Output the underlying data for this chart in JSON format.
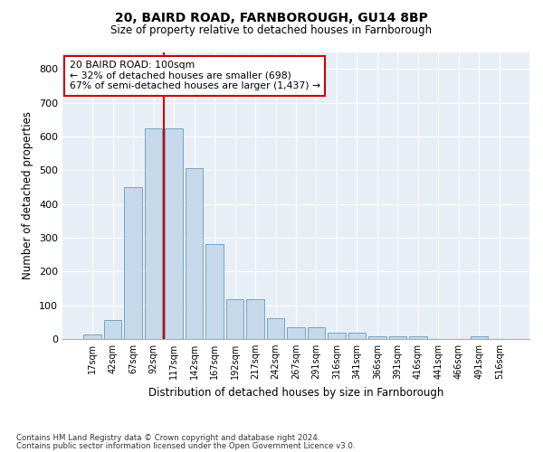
{
  "title": "20, BAIRD ROAD, FARNBOROUGH, GU14 8BP",
  "subtitle": "Size of property relative to detached houses in Farnborough",
  "xlabel": "Distribution of detached houses by size in Farnborough",
  "ylabel": "Number of detached properties",
  "bar_color": "#c5d9ea",
  "bar_edge_color": "#6699bb",
  "background_color": "#e8eef5",
  "grid_color": "#ffffff",
  "bin_labels": [
    "17sqm",
    "42sqm",
    "67sqm",
    "92sqm",
    "117sqm",
    "142sqm",
    "167sqm",
    "192sqm",
    "217sqm",
    "242sqm",
    "267sqm",
    "291sqm",
    "316sqm",
    "341sqm",
    "366sqm",
    "391sqm",
    "416sqm",
    "441sqm",
    "466sqm",
    "491sqm",
    "516sqm"
  ],
  "bar_values": [
    13,
    55,
    450,
    625,
    625,
    505,
    280,
    118,
    118,
    62,
    35,
    35,
    20,
    20,
    9,
    9,
    9,
    0,
    0,
    8,
    0
  ],
  "ylim": [
    0,
    850
  ],
  "yticks": [
    0,
    100,
    200,
    300,
    400,
    500,
    600,
    700,
    800
  ],
  "vline_x": 3.5,
  "annotation_text": "20 BAIRD ROAD: 100sqm\n← 32% of detached houses are smaller (698)\n67% of semi-detached houses are larger (1,437) →",
  "annotation_box_color": "#ffffff",
  "annotation_border_color": "#cc0000",
  "vline_color": "#cc0000",
  "footnote1": "Contains HM Land Registry data © Crown copyright and database right 2024.",
  "footnote2": "Contains public sector information licensed under the Open Government Licence v3.0."
}
